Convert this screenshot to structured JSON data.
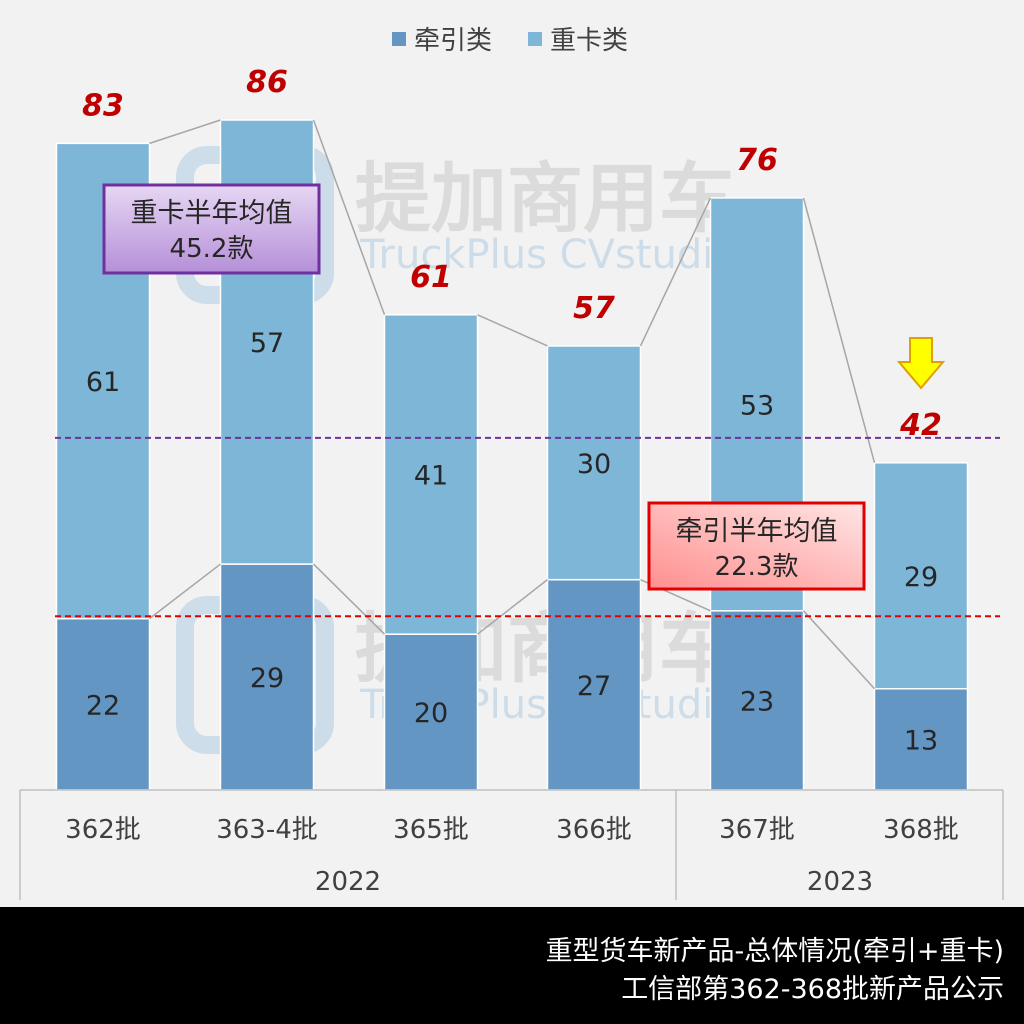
{
  "chart_data": {
    "type": "bar",
    "stacked": true,
    "categories": [
      "362批",
      "363-4批",
      "365批",
      "366批",
      "367批",
      "368批"
    ],
    "groups": [
      {
        "label": "2022",
        "categories": [
          "362批",
          "363-4批",
          "365批",
          "366批"
        ]
      },
      {
        "label": "2023",
        "categories": [
          "367批",
          "368批"
        ]
      }
    ],
    "series": [
      {
        "name": "牵引类",
        "values": [
          22,
          29,
          20,
          27,
          23,
          13
        ],
        "color": "#6496c3"
      },
      {
        "name": "重卡类",
        "values": [
          61,
          57,
          41,
          30,
          53,
          29
        ],
        "color": "#7db6d6"
      }
    ],
    "totals": [
      "83",
      "86",
      "61",
      "57",
      "76",
      "42"
    ],
    "ylim": [
      0,
      86
    ],
    "legend": "top-center",
    "grid": false,
    "reference_lines": [
      {
        "label_line1": "重卡半年均值",
        "label_line2": "45.2款",
        "value": 45.2,
        "color": "#7030a0"
      },
      {
        "label_line1": "牵引半年均值",
        "label_line2": "22.3款",
        "value": 22.3,
        "color": "#e00000"
      }
    ],
    "annotation": {
      "type": "down-arrow",
      "color": "#ffff00",
      "category": "368批"
    }
  },
  "watermark": {
    "cn": "提加商用车",
    "en": "TruckPlus CVstudio"
  },
  "footer": {
    "line1": "重型货车新产品-总体情况(牵引+重卡)",
    "line2": "工信部第362-368批新产品公示"
  }
}
